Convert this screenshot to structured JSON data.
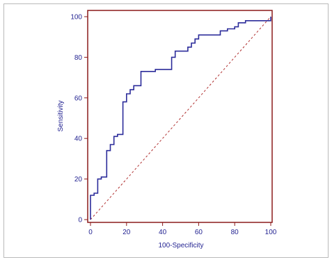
{
  "chart_data": {
    "type": "line",
    "title": "",
    "xlabel": "100-Specificity",
    "ylabel": "Sensitivity",
    "xlim": [
      0,
      100
    ],
    "ylim": [
      0,
      100
    ],
    "x_ticks": [
      "0",
      "20",
      "40",
      "60",
      "80",
      "100"
    ],
    "y_ticks": [
      "0",
      "20",
      "40",
      "60",
      "80",
      "100"
    ],
    "grid": false,
    "legend": "none",
    "colors": {
      "roc_curve": "#2b2b9a",
      "reference_line": "#b03030",
      "plot_frame": "#8b1a1a",
      "text": "#1f1f8f"
    },
    "series": [
      {
        "style": "step",
        "x": [
          0,
          0,
          2,
          2,
          4,
          4,
          6,
          6,
          9,
          9,
          11,
          11,
          13,
          13,
          15,
          15,
          18,
          18,
          20,
          20,
          22,
          22,
          24,
          24,
          28,
          28,
          36,
          36,
          45,
          45,
          47,
          47,
          54,
          54,
          56,
          56,
          58,
          58,
          60,
          60,
          72,
          72,
          76,
          76,
          80,
          80,
          82,
          82,
          86,
          86,
          98,
          98,
          100,
          100
        ],
        "y": [
          0,
          12,
          12,
          13,
          13,
          20,
          20,
          21,
          21,
          34,
          34,
          37,
          37,
          41,
          41,
          42,
          42,
          58,
          58,
          62,
          62,
          64,
          64,
          66,
          66,
          73,
          73,
          74,
          74,
          80,
          80,
          83,
          83,
          85,
          85,
          87,
          87,
          89,
          89,
          91,
          91,
          93,
          93,
          94,
          94,
          95,
          95,
          97,
          97,
          98,
          98,
          98,
          98,
          100
        ]
      },
      {
        "style": "dashed",
        "x": [
          0,
          100
        ],
        "y": [
          0,
          100
        ]
      }
    ]
  }
}
